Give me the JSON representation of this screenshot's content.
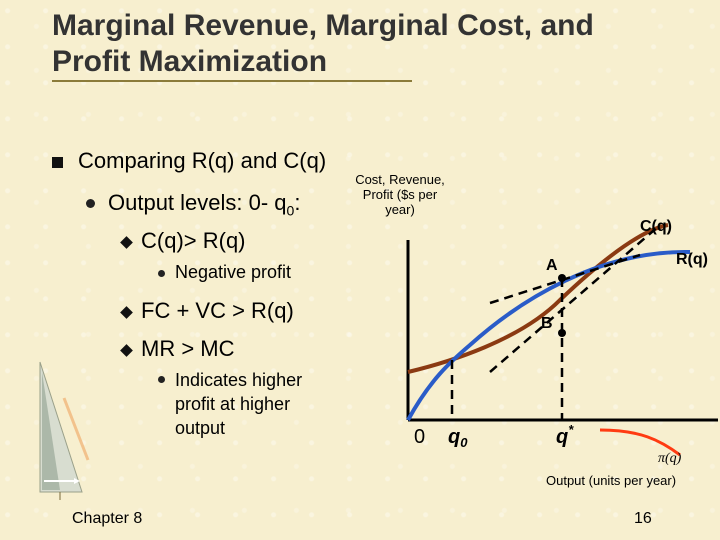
{
  "slide": {
    "title": "Marginal Revenue, Marginal Cost, and Profit Maximization",
    "bullets": {
      "b1": "Comparing R(q) and C(q)",
      "b2": "Output levels: 0- q",
      "b2_sub": "0",
      "b2_tail": ":",
      "b3": "C(q)> R(q)",
      "b4": "Negative profit",
      "b5": "FC + VC > R(q)",
      "b6": "MR > MC",
      "b7": "Indicates higher profit at higher output"
    },
    "footer_left": "Chapter 8",
    "page_number": "16"
  },
  "diagram": {
    "y_axis_label": "Cost, Revenue, Profit ($s per year)",
    "x_axis_label": "Output (units per year)",
    "origin_label": "0",
    "q0_label": "q",
    "q0_sub": "0",
    "qstar_label": "q",
    "qstar_sup": "*",
    "cost_curve_label": "C(q)",
    "revenue_curve_label": "R(q)",
    "point_a_label": "A",
    "point_b_label": "B",
    "profit_curve_label": "π(q)",
    "colors": {
      "cost_curve": "#8b3a12",
      "revenue_curve": "#2a5cc8",
      "profit_curve": "#ff3b12",
      "axis": "#000000"
    }
  }
}
